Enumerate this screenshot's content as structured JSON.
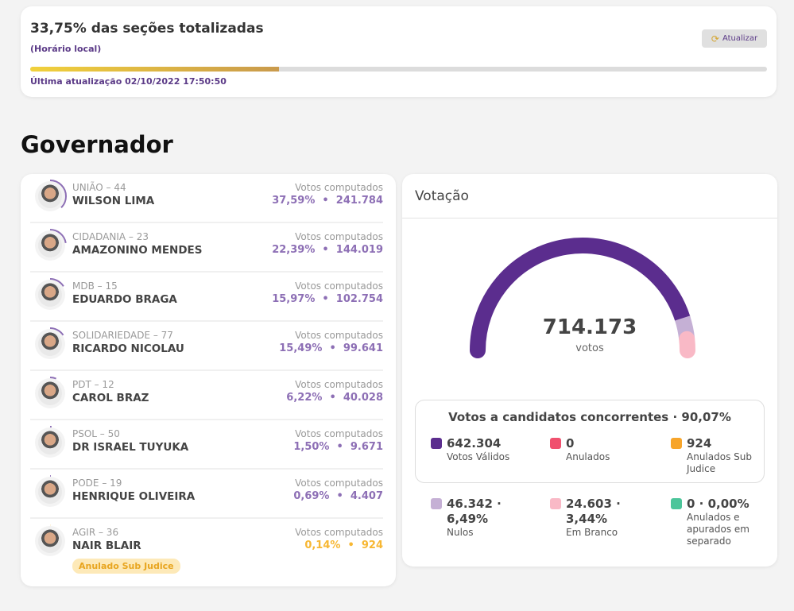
{
  "status": {
    "title": "33,75% das seções totalizadas",
    "local": "(Horário local)",
    "refresh_label": "Atualizar",
    "progress": 33.75,
    "last_update": "Última atualização 02/10/2022 17:50:50"
  },
  "section_title": "Governador",
  "candidates": [
    {
      "party": "UNIÃO – 44",
      "name": "WILSON LIMA",
      "label": "Votos computados",
      "pct": "37,59%",
      "votes": "241.784",
      "share": 37.59
    },
    {
      "party": "CIDADANIA – 23",
      "name": "AMAZONINO MENDES",
      "label": "Votos computados",
      "pct": "22,39%",
      "votes": "144.019",
      "share": 22.39
    },
    {
      "party": "MDB – 15",
      "name": "EDUARDO BRAGA",
      "label": "Votos computados",
      "pct": "15,97%",
      "votes": "102.754",
      "share": 15.97
    },
    {
      "party": "SOLIDARIEDADE – 77",
      "name": "RICARDO NICOLAU",
      "label": "Votos computados",
      "pct": "15,49%",
      "votes": "99.641",
      "share": 15.49
    },
    {
      "party": "PDT – 12",
      "name": "CAROL BRAZ",
      "label": "Votos computados",
      "pct": "6,22%",
      "votes": "40.028",
      "share": 6.22
    },
    {
      "party": "PSOL – 50",
      "name": "DR ISRAEL TUYUKA",
      "label": "Votos computados",
      "pct": "1,50%",
      "votes": "9.671",
      "share": 1.5
    },
    {
      "party": "PODE – 19",
      "name": "HENRIQUE OLIVEIRA",
      "label": "Votos computados",
      "pct": "0,69%",
      "votes": "4.407",
      "share": 0.69
    },
    {
      "party": "AGIR – 36",
      "name": "NAIR BLAIR",
      "label": "Votos computados",
      "pct": "0,14%",
      "votes": "924",
      "share": 0.14,
      "badge": "Anulado Sub Judice"
    }
  ],
  "votacao": {
    "title": "Votação",
    "total": "714.173",
    "total_label": "votos",
    "gauge": {
      "valid_pct": 90.07,
      "nulos_pct": 6.49,
      "branco_pct": 3.44
    },
    "box_title": "Votos a candidatos concorrentes · 90,07%",
    "items": [
      {
        "value": "642.304",
        "label": "Votos Válidos",
        "color": "#5b2d8e"
      },
      {
        "value": "0",
        "label": "Anulados",
        "color": "#f0506e"
      },
      {
        "value": "924",
        "label": "Anulados Sub Judice",
        "color": "#f7a52a"
      },
      {
        "value": "46.342 · 6,49%",
        "label": "Nulos",
        "color": "#c5b0d5"
      },
      {
        "value": "24.603 · 3,44%",
        "label": "Em Branco",
        "color": "#f9b9c6"
      },
      {
        "value": "0 · 0,00%",
        "label": "Anulados e apurados em separado",
        "color": "#4cc59a"
      }
    ]
  }
}
